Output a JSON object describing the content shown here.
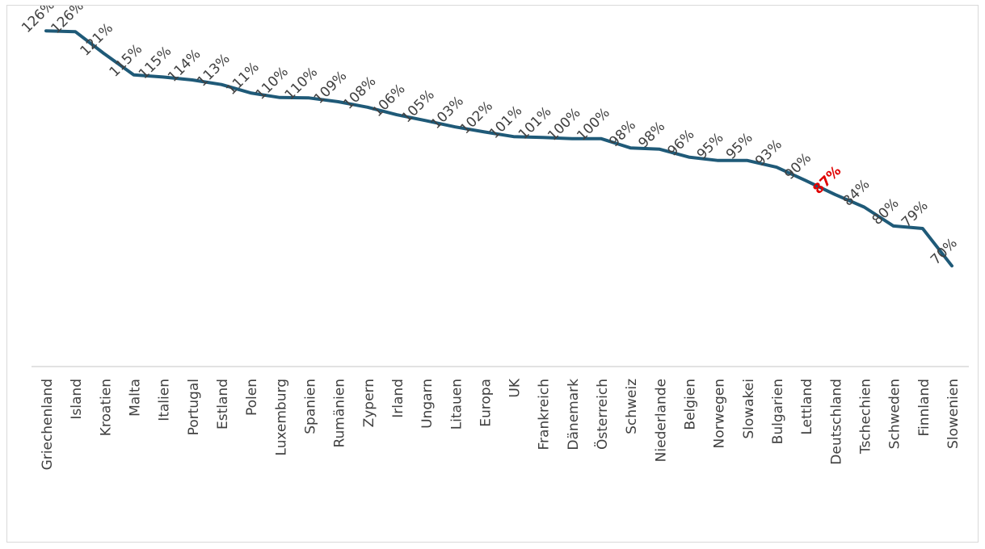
{
  "chart_data": {
    "type": "line",
    "categories": [
      "Griechenland",
      "Island",
      "Kroatien",
      "Malta",
      "Italien",
      "Portugal",
      "Estland",
      "Polen",
      "Luxemburg",
      "Spanien",
      "Rumänien",
      "Zypern",
      "Irland",
      "Ungarn",
      "Litauen",
      "Europa",
      "UK",
      "Frankreich",
      "Dänemark",
      "Österreich",
      "Schweiz",
      "Niederlande",
      "Belgien",
      "Norwegen",
      "Slowakei",
      "Bulgarien",
      "Lettland",
      "Deutschland",
      "Tschechien",
      "Schweden",
      "Finnland",
      "Slowenien"
    ],
    "series": [
      {
        "values": [
          126,
          125.8,
          120.5,
          115.5,
          115,
          114.3,
          113.2,
          111.2,
          110.1,
          110,
          109.1,
          107.8,
          106,
          104.6,
          103.1,
          101.9,
          100.8,
          100.6,
          100.3,
          100.3,
          98.1,
          97.8,
          95.9,
          95.1,
          95.1,
          93.5,
          90.3,
          87,
          84,
          79.5,
          78.9,
          70
        ],
        "labels": [
          "126%",
          "126%",
          "121%",
          "115%",
          "115%",
          "114%",
          "113%",
          "111%",
          "110%",
          "110%",
          "109%",
          "108%",
          "106%",
          "105%",
          "103%",
          "102%",
          "101%",
          "101%",
          "100%",
          "100%",
          "98%",
          "98%",
          "96%",
          "95%",
          "95%",
          "93%",
          "90%",
          "87%",
          "84%",
          "80%",
          "79%",
          "70%"
        ]
      }
    ],
    "highlight": {
      "category": "Deutschland",
      "color": "#e00000"
    },
    "line_color": "#1f5a78",
    "label_color": "#404040",
    "axis_color": "#d9d9d9",
    "ylim": [
      46,
      132
    ],
    "grid": false,
    "legend": "none"
  }
}
